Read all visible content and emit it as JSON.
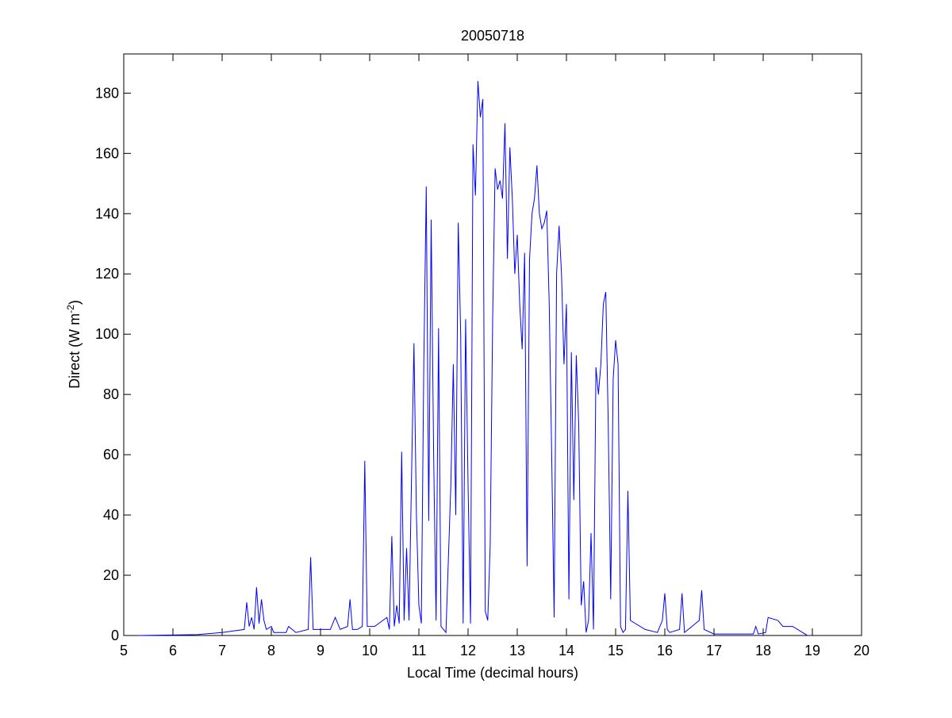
{
  "chart_data": {
    "type": "line",
    "title": "20050718",
    "xlabel": "Local Time (decimal hours)",
    "ylabel": [
      "Direct (W m",
      "-2",
      ")"
    ],
    "x": [
      5.3,
      6.5,
      7.0,
      7.45,
      7.5,
      7.55,
      7.6,
      7.65,
      7.7,
      7.75,
      7.8,
      7.85,
      7.9,
      8.0,
      8.05,
      8.3,
      8.35,
      8.5,
      8.75,
      8.8,
      8.85,
      9.2,
      9.3,
      9.4,
      9.55,
      9.6,
      9.65,
      9.75,
      9.85,
      9.9,
      9.95,
      10.1,
      10.35,
      10.4,
      10.45,
      10.5,
      10.55,
      10.6,
      10.65,
      10.7,
      10.75,
      10.8,
      10.85,
      10.9,
      10.95,
      11.0,
      11.05,
      11.1,
      11.15,
      11.2,
      11.25,
      11.3,
      11.35,
      11.4,
      11.45,
      11.55,
      11.65,
      11.7,
      11.75,
      11.8,
      11.85,
      11.9,
      11.95,
      12.0,
      12.05,
      12.1,
      12.15,
      12.2,
      12.25,
      12.3,
      12.35,
      12.4,
      12.45,
      12.5,
      12.55,
      12.6,
      12.65,
      12.7,
      12.75,
      12.8,
      12.85,
      12.9,
      12.95,
      13.0,
      13.05,
      13.1,
      13.15,
      13.2,
      13.25,
      13.3,
      13.35,
      13.4,
      13.45,
      13.5,
      13.55,
      13.6,
      13.65,
      13.7,
      13.75,
      13.8,
      13.85,
      13.9,
      13.95,
      14.0,
      14.05,
      14.1,
      14.15,
      14.2,
      14.25,
      14.3,
      14.35,
      14.4,
      14.45,
      14.5,
      14.55,
      14.6,
      14.65,
      14.7,
      14.75,
      14.8,
      14.85,
      14.9,
      14.95,
      15.0,
      15.05,
      15.1,
      15.15,
      15.2,
      15.25,
      15.3,
      15.6,
      15.85,
      15.95,
      16.0,
      16.05,
      16.1,
      16.3,
      16.35,
      16.4,
      16.7,
      16.75,
      16.8,
      17.0,
      17.8,
      17.85,
      17.9,
      18.05,
      18.1,
      18.3,
      18.4,
      18.6,
      18.8,
      18.9
    ],
    "series": [
      {
        "name": "Direct",
        "color": "#0000ff",
        "values": [
          0,
          0.3,
          1,
          2,
          11,
          3,
          6,
          2,
          16,
          4,
          12,
          5,
          2,
          3,
          1,
          1,
          3,
          1,
          2,
          26,
          2,
          2,
          6,
          2,
          3,
          12,
          2,
          2,
          3,
          58,
          3,
          3,
          6,
          2,
          33,
          3,
          10,
          4,
          61,
          5,
          29,
          5,
          52,
          97,
          40,
          10,
          4,
          90,
          149,
          38,
          138,
          60,
          5,
          102,
          3,
          1,
          50,
          90,
          40,
          137,
          100,
          4,
          105,
          50,
          4,
          163,
          146,
          184,
          172,
          178,
          8,
          5,
          30,
          105,
          155,
          148,
          151,
          145,
          170,
          125,
          162,
          145,
          120,
          133,
          110,
          95,
          127,
          23,
          125,
          140,
          145,
          156,
          140,
          135,
          137,
          141,
          110,
          60,
          6,
          120,
          136,
          120,
          90,
          110,
          12,
          94,
          45,
          93,
          70,
          10,
          18,
          1,
          5,
          34,
          2,
          89,
          80,
          90,
          110,
          114,
          70,
          12,
          85,
          98,
          90,
          3,
          1,
          2,
          48,
          5,
          2,
          1,
          5,
          14,
          2,
          1,
          2,
          14,
          1,
          5,
          15,
          2,
          0.5,
          0.5,
          3,
          0.5,
          1,
          6,
          5,
          3,
          3,
          1,
          0
        ]
      }
    ],
    "xlim": [
      5,
      20
    ],
    "xticks": [
      5,
      6,
      7,
      8,
      9,
      10,
      11,
      12,
      13,
      14,
      15,
      16,
      17,
      18,
      19,
      20
    ],
    "ylim": [
      0,
      193
    ],
    "yticks": [
      0,
      20,
      40,
      60,
      80,
      100,
      120,
      140,
      160,
      180
    ],
    "grid": false
  }
}
